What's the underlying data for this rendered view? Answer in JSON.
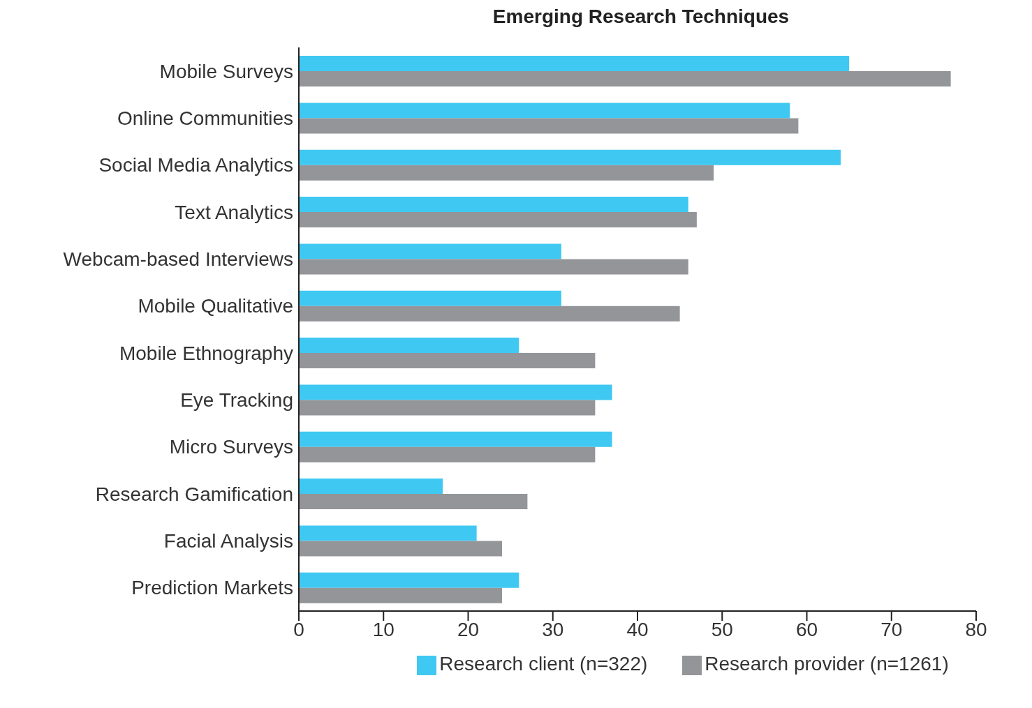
{
  "chart_data": {
    "type": "bar",
    "orientation": "horizontal",
    "title": "Emerging Research Techniques",
    "categories": [
      "Mobile Surveys",
      "Online Communities",
      "Social Media Analytics",
      "Text Analytics",
      "Webcam-based Interviews",
      "Mobile Qualitative",
      "Mobile Ethnography",
      "Eye Tracking",
      "Micro Surveys",
      "Research Gamification",
      "Facial Analysis",
      "Prediction Markets"
    ],
    "series": [
      {
        "name": "Research client (n=322)",
        "color": "#3fc8f2",
        "values": [
          65,
          58,
          64,
          46,
          31,
          31,
          26,
          37,
          37,
          17,
          21,
          26
        ]
      },
      {
        "name": "Research provider (n=1261)",
        "color": "#939598",
        "values": [
          77,
          59,
          49,
          47,
          46,
          45,
          35,
          35,
          35,
          27,
          24,
          24
        ]
      }
    ],
    "xlim": [
      0,
      80
    ],
    "xticks": [
      0,
      10,
      20,
      30,
      40,
      50,
      60,
      70,
      80
    ],
    "grid": false,
    "legend": "bottom"
  }
}
